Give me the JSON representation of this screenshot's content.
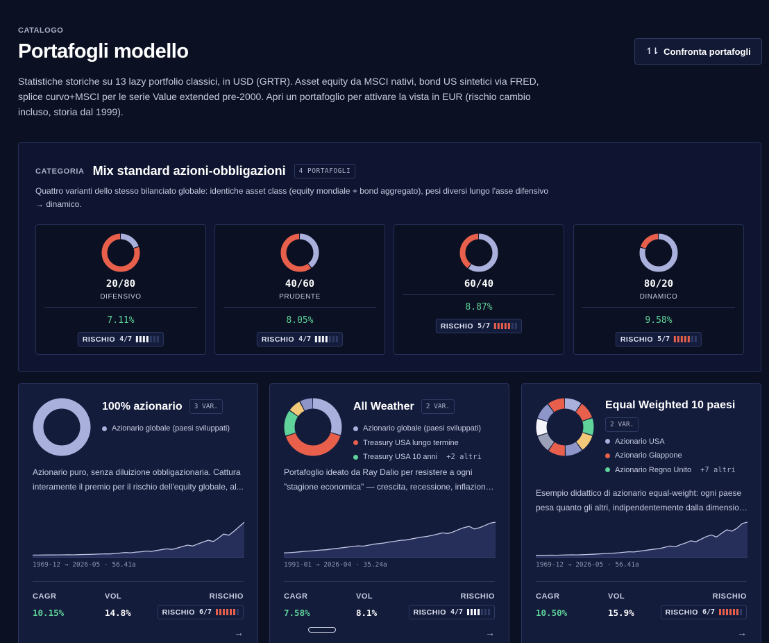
{
  "header": {
    "eyebrow": "CATALOGO",
    "title": "Portafogli modello",
    "intro": "Statistiche storiche su 13 lazy portfolio classici, in USD (GRTR). Asset equity da MSCI nativi, bond US sintetici via FRED, splice curvo+MSCI per le serie Value extended pre-2000. Apri un portafoglio per attivare la vista in EUR (rischio cambio incluso, storia dal 1999).",
    "compare_button": "Confronta portafogli",
    "compare_icon": "compare-arrows-icon"
  },
  "colors": {
    "equity": "#aab0dc",
    "bond": "#e8604c",
    "green": "#5fd39a",
    "gold": "#f2c879",
    "risk_white": "#f4f5fb",
    "risk_red": "#e8604c"
  },
  "category": {
    "label": "CATEGORIA",
    "title": "Mix standard azioni-obbligazioni",
    "count_badge": "4 PORTAFOGLI",
    "description": "Quattro varianti dello stesso bilanciato globale: identiche asset class (equity mondiale + bond aggregato), pesi diversi lungo l'asse difensivo → dinamico.",
    "risk_label": "RISCHIO",
    "items": [
      {
        "ratio": "20/80",
        "kind": "DIFENSIVO",
        "cagr": "7.11%",
        "risk": "4/7",
        "risk_level": 4,
        "equity_weight": 0.2
      },
      {
        "ratio": "40/60",
        "kind": "PRUDENTE",
        "cagr": "8.05%",
        "risk": "4/7",
        "risk_level": 4,
        "equity_weight": 0.4
      },
      {
        "ratio": "60/40",
        "kind": "",
        "cagr": "8.87%",
        "risk": "5/7",
        "risk_level": 5,
        "equity_weight": 0.6
      },
      {
        "ratio": "80/20",
        "kind": "DINAMICO",
        "cagr": "9.58%",
        "risk": "5/7",
        "risk_level": 5,
        "equity_weight": 0.8
      }
    ]
  },
  "cards": [
    {
      "title": "100% azionario",
      "variants": "3 VAR.",
      "legend": [
        "Azionario globale (paesi sviluppati)"
      ],
      "legend_colors": [
        "#aab0dc"
      ],
      "more": "",
      "description_lines": [
        "Azionario puro, senza diluizione obbligazionaria. Cattura",
        "interamente il premio per il rischio dell'equity globale, al..."
      ],
      "range": "1969-12 → 2026-05 · 56.41a",
      "cagr_label": "CAGR",
      "cagr": "10.15%",
      "vol_label": "VOL",
      "vol": "14.8%",
      "risk_label": "RISCHIO",
      "risk": "6/7",
      "risk_level": 6,
      "slices": [
        1.0
      ],
      "slice_colors": [
        "#aab0dc"
      ],
      "series": [
        1,
        1,
        1.05,
        1.1,
        1.08,
        1.15,
        1.2,
        1.3,
        1.25,
        1.4,
        1.5,
        1.6,
        1.8,
        1.9,
        2.1,
        2.0,
        2.4,
        2.8,
        3.3,
        3.0,
        3.6,
        3.9,
        4.5,
        4.2,
        5.0,
        5.8,
        6.5,
        6.0,
        7.2,
        8.5,
        9.8,
        9.0,
        10.8,
        12.5,
        14.0,
        13.0,
        16.0,
        19.5,
        18.5,
        22.0,
        26.0,
        30.0
      ]
    },
    {
      "title": "All Weather",
      "variants": "2 VAR.",
      "legend": [
        "Azionario globale (paesi sviluppati)",
        "Treasury USA lungo termine",
        "Treasury USA 10 anni"
      ],
      "legend_colors": [
        "#aab0dc",
        "#e8604c",
        "#5fd39a"
      ],
      "more": "+2 altri",
      "description_lines": [
        "Portafoglio ideato da Ray Dalio per resistere a ogni",
        "\"stagione economica\" — crescita, recessione, inflazione,..."
      ],
      "range": "1991-01 → 2026-04 · 35.24a",
      "cagr_label": "CAGR",
      "cagr": "7.58%",
      "vol_label": "VOL",
      "vol": "8.1%",
      "risk_label": "RISCHIO",
      "risk": "4/7",
      "risk_level": 4,
      "slices": [
        0.3,
        0.4,
        0.15,
        0.075,
        0.075
      ],
      "slice_colors": [
        "#aab0dc",
        "#e8604c",
        "#5fd39a",
        "#f2c879",
        "#8e95c8"
      ],
      "series": [
        1,
        1.1,
        1.2,
        1.35,
        1.5,
        1.6,
        1.75,
        1.9,
        2.0,
        2.2,
        2.4,
        2.6,
        2.8,
        3.0,
        3.2,
        3.1,
        3.4,
        3.7,
        3.9,
        4.1,
        4.4,
        4.6,
        4.9,
        5.0,
        5.3,
        5.6,
        5.9,
        6.1,
        6.4,
        6.8,
        7.2,
        7.0,
        7.5,
        8.2,
        8.8,
        9.2,
        8.4,
        8.8,
        9.5,
        10.2,
        10.5
      ]
    },
    {
      "title": "Equal Weighted 10 paesi",
      "variants": "2 VAR.",
      "legend": [
        "Azionario USA",
        "Azionario Giappone",
        "Azionario Regno Unito"
      ],
      "legend_colors": [
        "#aab0dc",
        "#e8604c",
        "#5fd39a"
      ],
      "more": "+7 altri",
      "description_lines": [
        "Esempio didattico di azionario equal-weight: ogni paese",
        "pesa quanto gli altri, indipendentemente dalla dimension..."
      ],
      "range": "1969-12 → 2026-05 · 56.41a",
      "cagr_label": "CAGR",
      "cagr": "10.50%",
      "vol_label": "VOL",
      "vol": "15.9%",
      "risk_label": "RISCHIO",
      "risk": "6/7",
      "risk_level": 6,
      "slices": [
        0.1,
        0.1,
        0.1,
        0.1,
        0.1,
        0.1,
        0.1,
        0.1,
        0.1,
        0.1
      ],
      "slice_colors": [
        "#aab0dc",
        "#e8604c",
        "#5fd39a",
        "#f2c879",
        "#8e95c8",
        "#e8604c",
        "#9aa0b8",
        "#f4f5fb",
        "#8e95c8",
        "#e8604c"
      ],
      "series": [
        1,
        1.05,
        1.1,
        1.2,
        1.15,
        1.3,
        1.45,
        1.6,
        1.55,
        1.8,
        2.0,
        2.3,
        2.6,
        2.9,
        3.2,
        3.6,
        4.0,
        4.6,
        5.2,
        5.0,
        5.9,
        6.6,
        7.5,
        8.3,
        9.0,
        10.5,
        12.0,
        11.0,
        13.5,
        15.5,
        18.0,
        17.0,
        20.0,
        23.0,
        25.0,
        22.5,
        27.0,
        31.0,
        29.5,
        33.0,
        38.5,
        40.0
      ]
    }
  ]
}
